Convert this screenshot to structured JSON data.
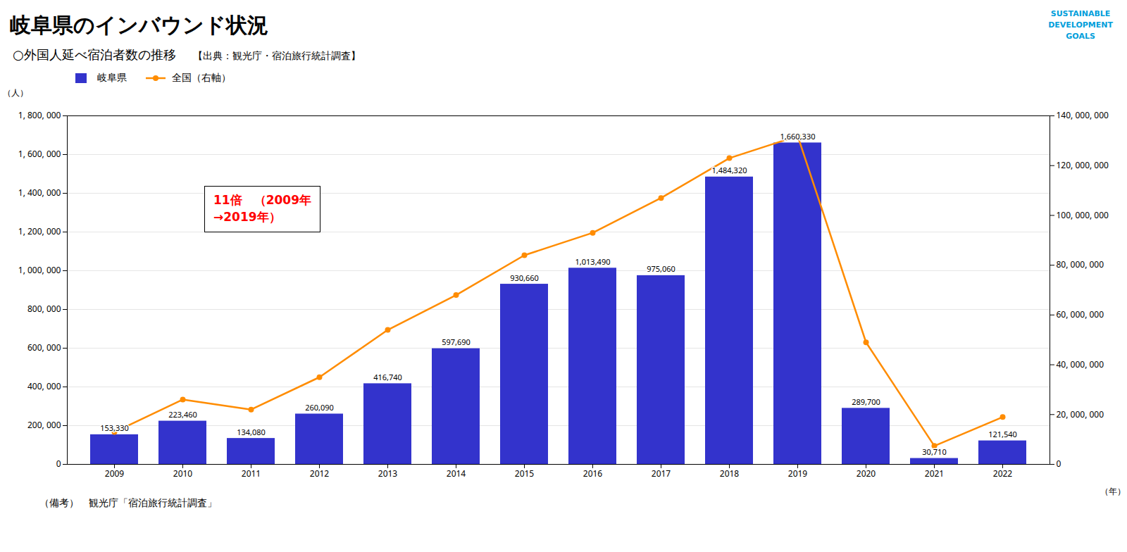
{
  "chart_data": {
    "type": "bar",
    "title": "岐阜県のインバウンド状況",
    "subtitle": "○外国人延べ宿泊者数の推移",
    "source": "【出典：観光庁・宿泊旅行統計調査】",
    "footnote": "（備考）　観光庁「宿泊旅行統計調査」",
    "badge": {
      "lines": [
        "SUSTAINABLE",
        "DEVELOPMENT",
        "GOALS"
      ],
      "color": "#009edb"
    },
    "annotation": {
      "lines": [
        "11倍　（2009年",
        "→2019年）"
      ],
      "color": "red"
    },
    "xlabel": "（年）",
    "ylabel": "（人）",
    "categories": [
      "2009",
      "2010",
      "2011",
      "2012",
      "2013",
      "2014",
      "2015",
      "2016",
      "2017",
      "2018",
      "2019",
      "2020",
      "2021",
      "2022"
    ],
    "series": [
      {
        "name": "岐阜県",
        "type": "bar",
        "color": "#3333cc",
        "data_labels": true,
        "values": [
          153330,
          223460,
          134080,
          260090,
          416740,
          597690,
          930660,
          1013490,
          975060,
          1484320,
          1660330,
          289700,
          30710,
          121540
        ],
        "value_labels": [
          "153,330",
          "223,460",
          "134,080",
          "260,090",
          "416,740",
          "597,690",
          "930,660",
          "1,013,490",
          "975,060",
          "1,484,320",
          "1,660,330",
          "289,700",
          "30,710",
          "121,540"
        ]
      },
      {
        "name": "全国（右軸）",
        "type": "line",
        "axis": "y2",
        "color": "#ff8c00",
        "marker": "circle",
        "values": [
          13000000,
          26000000,
          22000000,
          35000000,
          54000000,
          68000000,
          84000000,
          93000000,
          107000000,
          123000000,
          131900000,
          49000000,
          7400000,
          19000000
        ]
      }
    ],
    "ylim": [
      0,
      1800000
    ],
    "yticks": [
      0,
      {
        "value": 200000,
        "label": "200, 000"
      },
      {
        "value": 400000,
        "label": "400, 000"
      },
      {
        "value": 600000,
        "label": "600, 000"
      },
      {
        "value": 800000,
        "label": "800, 000"
      },
      {
        "value": 1000000,
        "label": "1, 000, 000"
      },
      {
        "value": 1200000,
        "label": "1, 200, 000"
      },
      {
        "value": 1400000,
        "label": "1, 400, 000"
      },
      {
        "value": 1600000,
        "label": "1, 600, 000"
      },
      {
        "value": 1800000,
        "label": "1, 800, 000"
      }
    ],
    "y2lim": [
      0,
      140000000
    ],
    "y2ticks": [
      0,
      {
        "value": 20000000,
        "label": "20, 000, 000"
      },
      {
        "value": 40000000,
        "label": "40, 000, 000"
      },
      {
        "value": 60000000,
        "label": "60, 000, 000"
      },
      {
        "value": 80000000,
        "label": "80, 000, 000"
      },
      {
        "value": 100000000,
        "label": "100, 000, 000"
      },
      {
        "value": 120000000,
        "label": "120, 000, 000"
      },
      {
        "value": 140000000,
        "label": "140, 000, 000"
      }
    ],
    "grid": true,
    "legend": "upper left"
  }
}
